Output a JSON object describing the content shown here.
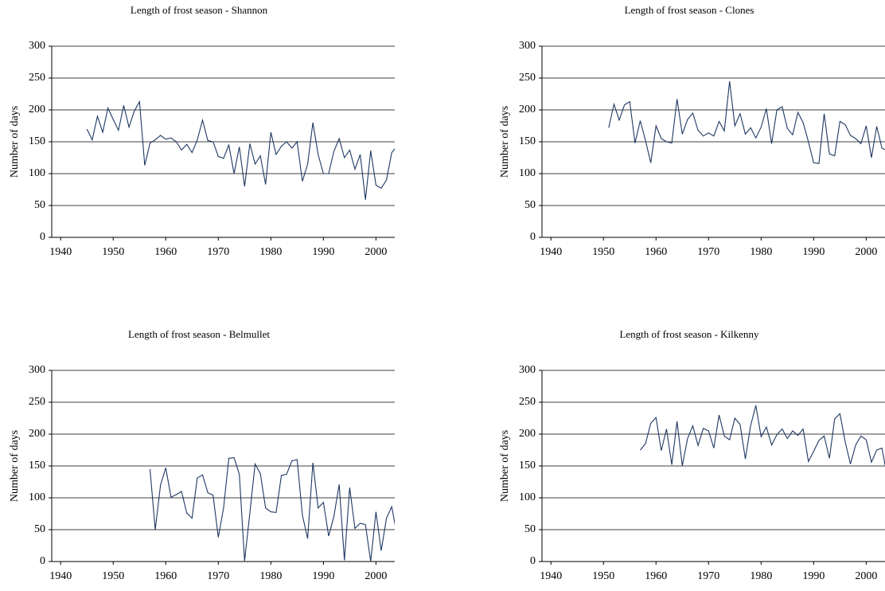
{
  "chart_data": [
    {
      "type": "line",
      "title": "Length of frost season - Shannon",
      "ylabel": "Number of days",
      "xlim": [
        1938.3,
        2006
      ],
      "xticks": [
        1940,
        1950,
        1960,
        1970,
        1980,
        1990,
        2000
      ],
      "ylim": [
        0,
        300
      ],
      "yticks": [
        0,
        50,
        100,
        150,
        200,
        250,
        300
      ],
      "grid": true,
      "x": [
        1945,
        1946,
        1947,
        1948,
        1949,
        1950,
        1951,
        1952,
        1953,
        1954,
        1955,
        1956,
        1957,
        1958,
        1959,
        1960,
        1961,
        1962,
        1963,
        1964,
        1965,
        1966,
        1967,
        1968,
        1969,
        1970,
        1971,
        1972,
        1973,
        1974,
        1975,
        1976,
        1977,
        1978,
        1979,
        1980,
        1981,
        1982,
        1983,
        1984,
        1985,
        1986,
        1987,
        1988,
        1989,
        1990,
        1991,
        1992,
        1993,
        1994,
        1995,
        1996,
        1997,
        1998,
        1999,
        2000,
        2001,
        2002,
        2003,
        2004
      ],
      "series": [
        {
          "color": "#1f3864",
          "values": [
            170,
            153,
            190,
            165,
            203,
            185,
            168,
            207,
            173,
            198,
            213,
            113,
            148,
            153,
            160,
            154,
            156,
            150,
            137,
            146,
            133,
            153,
            184,
            152,
            150,
            127,
            124,
            145,
            100,
            142,
            80,
            147,
            115,
            128,
            83,
            165,
            130,
            143,
            150,
            140,
            150,
            88,
            115,
            180,
            130,
            100,
            100,
            135,
            155,
            125,
            137,
            107,
            130,
            59,
            136,
            82,
            77,
            90,
            133,
            143
          ]
        }
      ]
    },
    {
      "type": "line",
      "title": "Length of frost season - Clones",
      "ylabel": "Number of days",
      "xlim": [
        1938.3,
        2006
      ],
      "xticks": [
        1940,
        1950,
        1960,
        1970,
        1980,
        1990,
        2000
      ],
      "ylim": [
        0,
        300
      ],
      "yticks": [
        0,
        50,
        100,
        150,
        200,
        250,
        300
      ],
      "grid": true,
      "x": [
        1951,
        1952,
        1953,
        1954,
        1955,
        1956,
        1957,
        1958,
        1959,
        1960,
        1961,
        1962,
        1963,
        1964,
        1965,
        1966,
        1967,
        1968,
        1969,
        1970,
        1971,
        1972,
        1973,
        1974,
        1975,
        1976,
        1977,
        1978,
        1979,
        1980,
        1981,
        1982,
        1983,
        1984,
        1985,
        1986,
        1987,
        1988,
        1989,
        1990,
        1991,
        1992,
        1993,
        1994,
        1995,
        1996,
        1997,
        1998,
        1999,
        2000,
        2001,
        2002,
        2003,
        2004
      ],
      "series": [
        {
          "color": "#1f3864",
          "values": [
            172,
            209,
            184,
            208,
            213,
            148,
            183,
            152,
            117,
            175,
            155,
            150,
            148,
            217,
            162,
            185,
            195,
            168,
            159,
            164,
            159,
            182,
            167,
            245,
            175,
            194,
            162,
            172,
            156,
            173,
            202,
            147,
            200,
            205,
            171,
            161,
            196,
            180,
            150,
            117,
            116,
            194,
            131,
            128,
            182,
            177,
            160,
            155,
            147,
            175,
            125,
            174,
            140,
            136
          ]
        }
      ]
    },
    {
      "type": "line",
      "title": "Length of frost season - Belmullet",
      "ylabel": "Number of days",
      "xlim": [
        1938.3,
        2006
      ],
      "xticks": [
        1940,
        1950,
        1960,
        1970,
        1980,
        1990,
        2000
      ],
      "ylim": [
        0,
        300
      ],
      "yticks": [
        0,
        50,
        100,
        150,
        200,
        250,
        300
      ],
      "grid": true,
      "x": [
        1957,
        1958,
        1959,
        1960,
        1961,
        1962,
        1963,
        1964,
        1965,
        1966,
        1967,
        1968,
        1969,
        1970,
        1971,
        1972,
        1973,
        1974,
        1975,
        1976,
        1977,
        1978,
        1979,
        1980,
        1981,
        1982,
        1983,
        1984,
        1985,
        1986,
        1987,
        1988,
        1989,
        1990,
        1991,
        1992,
        1993,
        1994,
        1995,
        1996,
        1997,
        1998,
        1999,
        2000,
        2001,
        2002,
        2003,
        2004
      ],
      "series": [
        {
          "color": "#1f3864",
          "values": [
            145,
            50,
            120,
            147,
            101,
            105,
            110,
            76,
            68,
            131,
            136,
            108,
            104,
            38,
            84,
            162,
            163,
            137,
            1,
            76,
            153,
            138,
            84,
            78,
            77,
            135,
            137,
            158,
            160,
            73,
            36,
            155,
            84,
            93,
            40,
            71,
            121,
            2,
            116,
            52,
            60,
            58,
            0,
            78,
            17,
            68,
            86,
            42
          ]
        }
      ]
    },
    {
      "type": "line",
      "title": "Length of frost season - Kilkenny",
      "ylabel": "Number of days",
      "xlim": [
        1938.3,
        2006
      ],
      "xticks": [
        1940,
        1950,
        1960,
        1970,
        1980,
        1990,
        2000
      ],
      "ylim": [
        0,
        300
      ],
      "yticks": [
        0,
        50,
        100,
        150,
        200,
        250,
        300
      ],
      "grid": true,
      "x": [
        1957,
        1958,
        1959,
        1960,
        1961,
        1962,
        1963,
        1964,
        1965,
        1966,
        1967,
        1968,
        1969,
        1970,
        1971,
        1972,
        1973,
        1974,
        1975,
        1976,
        1977,
        1978,
        1979,
        1980,
        1981,
        1982,
        1983,
        1984,
        1985,
        1986,
        1987,
        1988,
        1989,
        1990,
        1991,
        1992,
        1993,
        1994,
        1995,
        1996,
        1997,
        1998,
        1999,
        2000,
        2001,
        2002,
        2003,
        2004
      ],
      "series": [
        {
          "color": "#1f3864",
          "values": [
            175,
            185,
            217,
            226,
            174,
            208,
            152,
            220,
            150,
            193,
            213,
            182,
            209,
            205,
            178,
            230,
            197,
            191,
            225,
            215,
            161,
            213,
            245,
            196,
            211,
            183,
            199,
            208,
            193,
            205,
            198,
            208,
            157,
            173,
            190,
            197,
            162,
            224,
            232,
            188,
            153,
            183,
            197,
            191,
            156,
            175,
            178,
            133
          ]
        }
      ]
    }
  ]
}
